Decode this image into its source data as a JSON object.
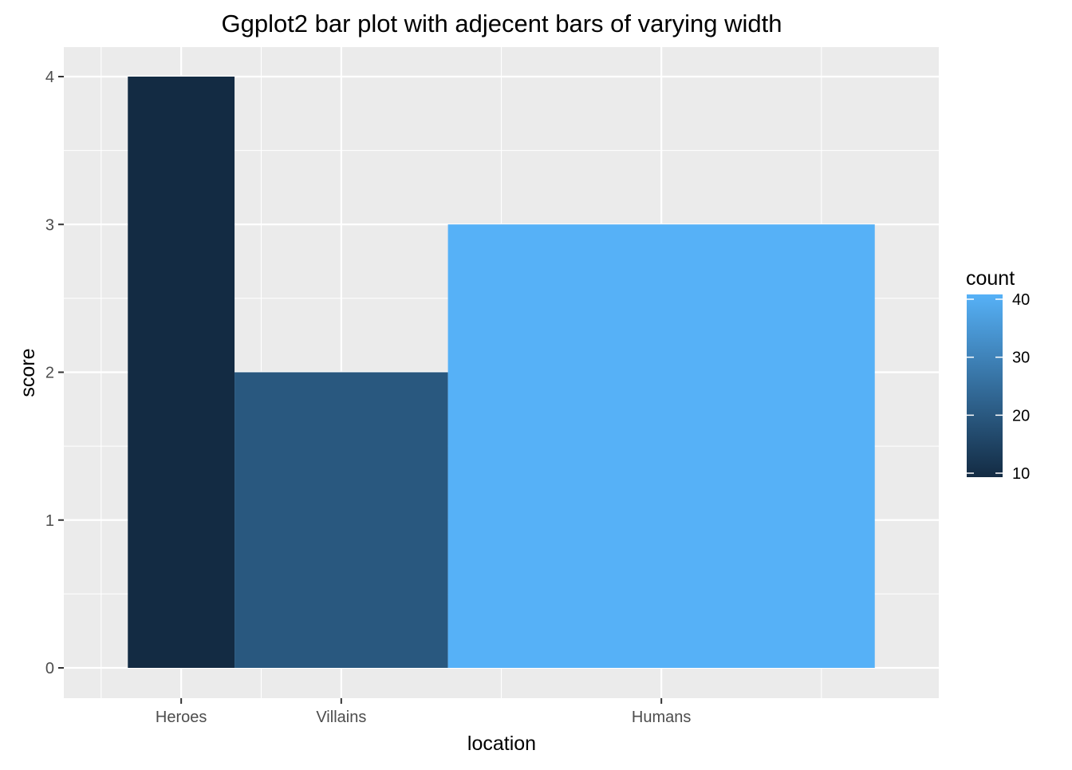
{
  "chart_data": {
    "type": "bar",
    "title": "Ggplot2 bar plot with adjecent bars of varying width",
    "xlabel": "location",
    "ylabel": "score",
    "categories": [
      "Heroes",
      "Villains",
      "Humans"
    ],
    "values": [
      4,
      2,
      3
    ],
    "bar_x_ranges": [
      [
        1,
        2
      ],
      [
        2,
        4
      ],
      [
        4,
        8
      ]
    ],
    "x_tick_positions": [
      1.5,
      3,
      6
    ],
    "xlim": [
      0.4,
      8.6
    ],
    "ylim": [
      0,
      4.2
    ],
    "yticks": [
      0,
      1,
      2,
      3,
      4
    ],
    "grid": true,
    "fill_by": "count",
    "counts": [
      10,
      20,
      40
    ],
    "legend": {
      "title": "count",
      "position": "right",
      "range": [
        10,
        40
      ],
      "ticks": [
        10,
        20,
        30,
        40
      ],
      "low_color": "#132B43",
      "high_color": "#56B1F7"
    },
    "panel_background": "#EBEBEB",
    "grid_color": "#FFFFFF"
  }
}
